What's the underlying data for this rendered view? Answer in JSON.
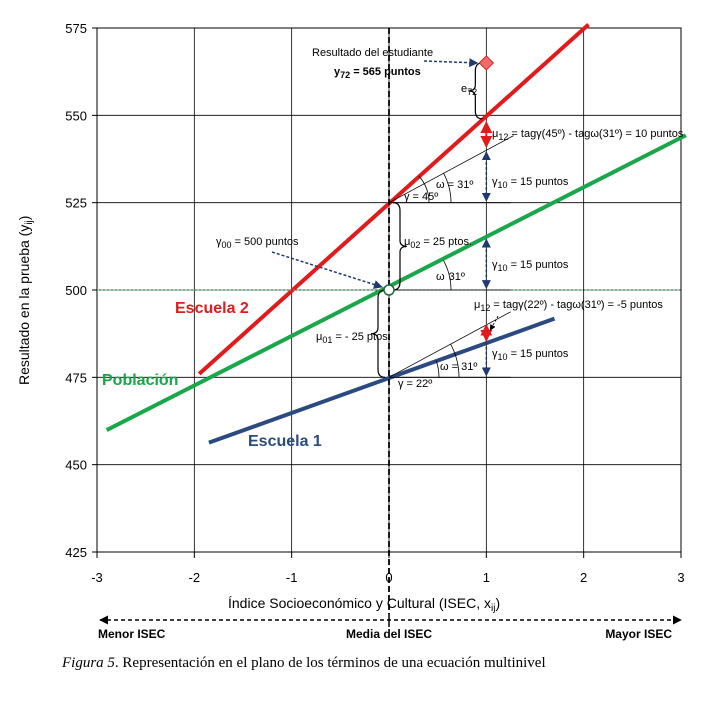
{
  "chart_data": {
    "type": "line",
    "xlabel": "Índice Socioeconómico y Cultural (ISEC, x",
    "xlabel_sub": "ij",
    "xlabel_close": ")",
    "ylabel": "Resultado en la prueba (y",
    "ylabel_sub": "ij",
    "ylabel_close": ")",
    "xlim": [
      -3,
      3
    ],
    "ylim": [
      425,
      575
    ],
    "x_ticks": [
      -3,
      -2,
      -1,
      0,
      1,
      2,
      3
    ],
    "y_ticks": [
      425,
      450,
      475,
      500,
      525,
      550,
      575
    ],
    "series": [
      {
        "name": "Escuela 2",
        "color": "#e31a1c",
        "x": [
          -1.95,
          2.05
        ],
        "y": [
          476,
          576
        ]
      },
      {
        "name": "Población",
        "color": "#1aa64a",
        "x": [
          -2.9,
          3.05
        ],
        "y": [
          459.9,
          544.3
        ]
      },
      {
        "name": "Escuela 1",
        "color": "#2b4a80",
        "x": [
          -1.85,
          1.7
        ],
        "y": [
          456.3,
          491.8
        ]
      }
    ],
    "reference_lines": {
      "mean_x": 0,
      "population_mean_y": 500
    },
    "points": {
      "gamma00": {
        "x": 0,
        "y": 500
      },
      "student": {
        "x": 1,
        "y": 565
      }
    },
    "annotations": {
      "student_result": "Resultado del estudiante",
      "y72": "y",
      "y72_sub": "72",
      "y72_value": " = 565 puntos",
      "e72": "e",
      "e72_sub": "72",
      "mu12_top": "μ",
      "mu12_top_sub": "12",
      "mu12_top_text": " = tagγ(45º) - tagω(31º) = 10 puntos",
      "gamma10": "γ",
      "gamma10_sub": "10",
      "gamma10_text": " = 15 puntos",
      "omega": "ω",
      "omega_31": " = 31º",
      "gamma_45": "γ = 45º",
      "mu02": "μ",
      "mu02_sub": "02",
      "mu02_text": " = 25 ptos.",
      "gamma00": "γ",
      "gamma00_sub": "00",
      "gamma00_text": " = 500 puntos",
      "omega_31_mid": "31º",
      "mu12_bottom": "μ",
      "mu12_bottom_sub": "12",
      "mu12_bottom_text": " = tagγ(22º) - tagω(31º) = -5 puntos",
      "mu01": "μ",
      "mu01_sub": "01",
      "mu01_text": " = - 25 ptos.",
      "gamma_22": "γ = 22º"
    },
    "isec_labels": {
      "left": "Menor ISEC",
      "middle": "Media del ISEC",
      "right": "Mayor ISEC"
    }
  },
  "caption": {
    "label": "Figura 5",
    "text": ". Representación en el plano de los términos de una ecuación multinivel"
  }
}
